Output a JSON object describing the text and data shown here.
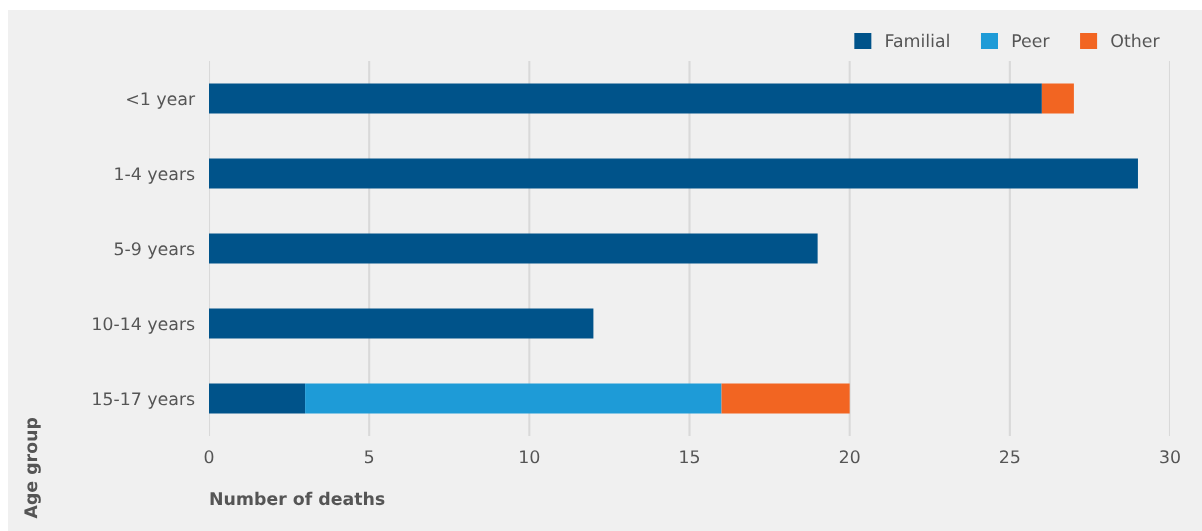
{
  "chart_data": {
    "type": "bar",
    "orientation": "horizontal",
    "stacked": true,
    "categories": [
      "<1 year",
      "1-4 years",
      "5-9 years",
      "10-14 years",
      "15-17 years"
    ],
    "series": [
      {
        "name": "Familial",
        "color": "#00538a",
        "values": [
          26,
          29,
          19,
          12,
          3
        ]
      },
      {
        "name": "Peer",
        "color": "#1e9bd7",
        "values": [
          0,
          0,
          0,
          0,
          13
        ]
      },
      {
        "name": "Other",
        "color": "#f26522",
        "values": [
          1,
          0,
          0,
          0,
          4
        ]
      }
    ],
    "xlabel": "Number of deaths",
    "ylabel": "Age group",
    "xlim": [
      0,
      30
    ],
    "xticks": [
      0,
      5,
      10,
      15,
      20,
      25,
      30
    ],
    "grid": "x",
    "legend": "top right"
  }
}
